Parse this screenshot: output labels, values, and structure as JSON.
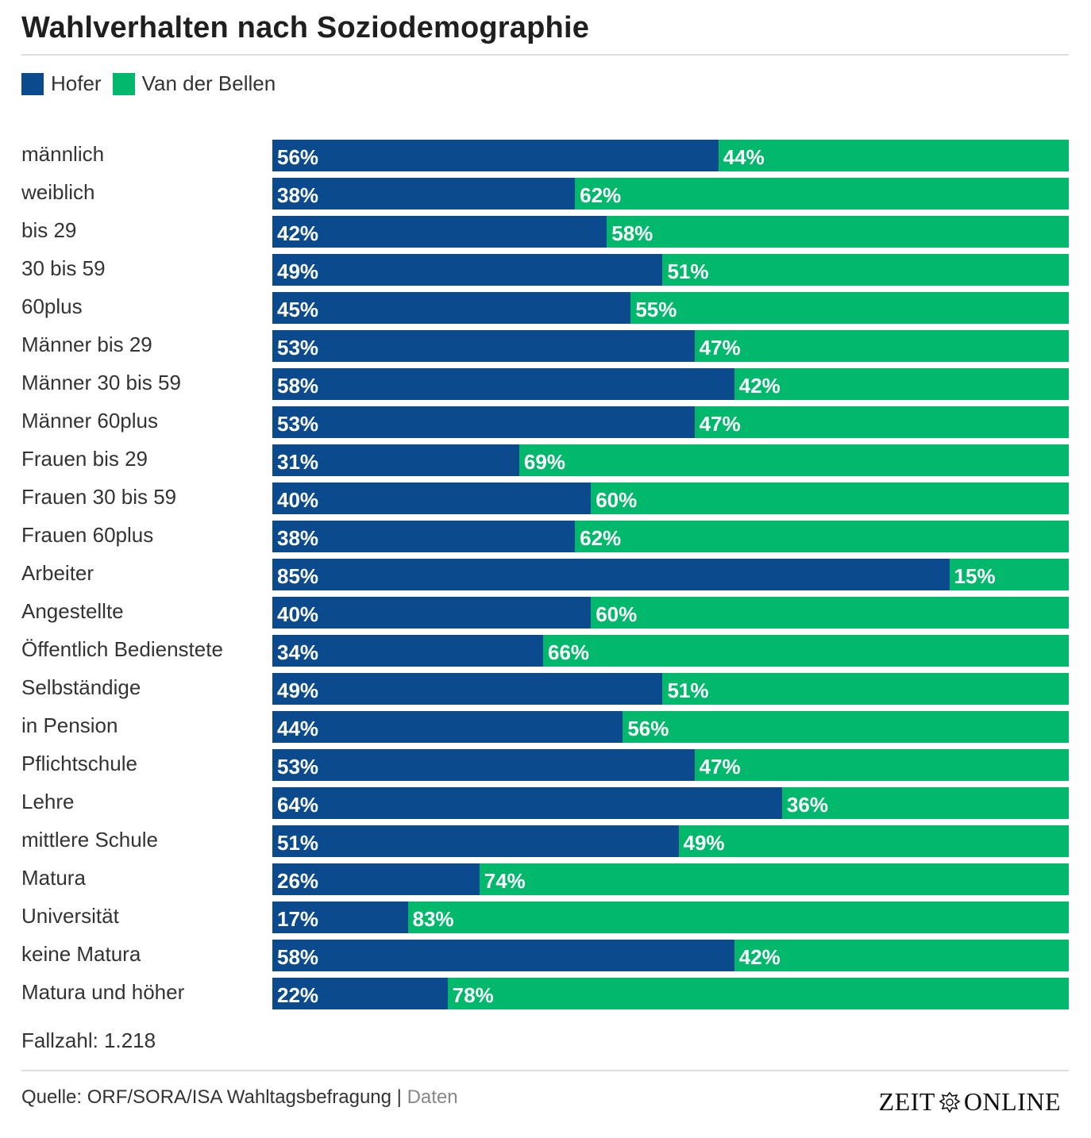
{
  "header": {
    "title": "Wahlverhalten nach Soziodemographie"
  },
  "colors": {
    "hofer": "#0b4a8c",
    "vdb": "#00b86b"
  },
  "chart_data": {
    "type": "bar",
    "orientation": "horizontal",
    "stacked": true,
    "title": "Wahlverhalten nach Soziodemographie",
    "legend_position": "top-left",
    "categories": [
      "männlich",
      "weiblich",
      "bis 29",
      "30 bis 59",
      "60plus",
      "Männer bis 29",
      "Männer 30 bis 59",
      "Männer 60plus",
      "Frauen bis 29",
      "Frauen 30 bis 59",
      "Frauen 60plus",
      "Arbeiter",
      "Angestellte",
      "Öffentlich Bedienstete",
      "Selbständige",
      "in Pension",
      "Pflichtschule",
      "Lehre",
      "mittlere Schule",
      "Matura",
      "Universität",
      "keine Matura",
      "Matura und höher"
    ],
    "series": [
      {
        "name": "Hofer",
        "color": "#0b4a8c",
        "values": [
          56,
          38,
          42,
          49,
          45,
          53,
          58,
          53,
          31,
          40,
          38,
          85,
          40,
          34,
          49,
          44,
          53,
          64,
          51,
          26,
          17,
          58,
          22
        ]
      },
      {
        "name": "Van der Bellen",
        "color": "#00b86b",
        "values": [
          44,
          62,
          58,
          51,
          55,
          47,
          42,
          47,
          69,
          60,
          62,
          15,
          60,
          66,
          51,
          56,
          47,
          36,
          49,
          74,
          83,
          42,
          78
        ]
      }
    ],
    "value_suffix": "%",
    "xlim": [
      0,
      100
    ]
  },
  "footnote": "Fallzahl: 1.218",
  "source": {
    "text": "Quelle: ORF/SORA/ISA Wahltagsbefragung |",
    "link": "Daten"
  },
  "logo": {
    "left": "ZEIT",
    "right": "ONLINE",
    "emblem": "eagle-crest-icon"
  }
}
